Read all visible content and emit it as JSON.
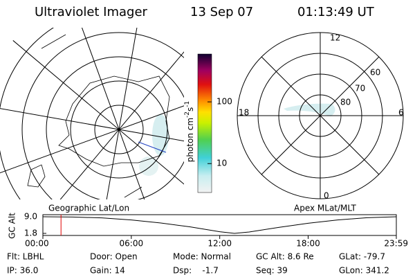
{
  "header": {
    "instrument": "Ultraviolet Imager",
    "date": "13 Sep 07",
    "time": "01:13:49 UT"
  },
  "right_panel": {
    "mlt_labels": {
      "top": "12",
      "left": "18",
      "right": "6",
      "bottom": "0"
    },
    "mlat_labels": [
      "60",
      "70",
      "80"
    ]
  },
  "colorbar": {
    "label_main": "photon cm",
    "label_sup1": "-2",
    "label_mid": "s",
    "label_sup2": "-1",
    "log": true,
    "lim": [
      3.4,
      596
    ],
    "ticks": [
      10,
      100
    ]
  },
  "chart_data": {
    "type": "line",
    "left_label": "Geographic Lat/Lon",
    "right_label": "Apex MLat/MLT",
    "ylabel": "GC Alt",
    "x": [
      0,
      2,
      4,
      6,
      8,
      10,
      12,
      13,
      14,
      16,
      18,
      20,
      22,
      24
    ],
    "series": [
      {
        "color": "#000000",
        "values": [
          9.0,
          8.9,
          8.5,
          7.6,
          6.3,
          4.6,
          2.5,
          1.8,
          2.4,
          4.4,
          6.2,
          7.6,
          8.6,
          9.0
        ]
      }
    ],
    "marker_x": 1.23,
    "marker_color": "#e00000",
    "xlim": [
      0,
      23.983
    ],
    "ylim": [
      1.8,
      9.0
    ],
    "xticks": [
      {
        "value": 0,
        "label": "00:00"
      },
      {
        "value": 6,
        "label": "06:00"
      },
      {
        "value": 12,
        "label": "12:00"
      },
      {
        "value": 18,
        "label": "18:00"
      },
      {
        "value": 23.983,
        "label": "23:59"
      }
    ],
    "yticks": [
      {
        "value": 9.0,
        "label": "9.0"
      },
      {
        "value": 1.8,
        "label": "1.8"
      }
    ]
  },
  "footer": [
    [
      "Flt: LBHL",
      "IP: 36.0"
    ],
    [
      "Door: Open",
      "Gain: 14"
    ],
    [
      "Mode: Normal",
      "Dsp:    -1.7"
    ],
    [
      "GC Alt: 8.6 Re",
      "Seq: 39"
    ],
    [
      "GLat: -79.7",
      "GLon: 341.2"
    ]
  ]
}
